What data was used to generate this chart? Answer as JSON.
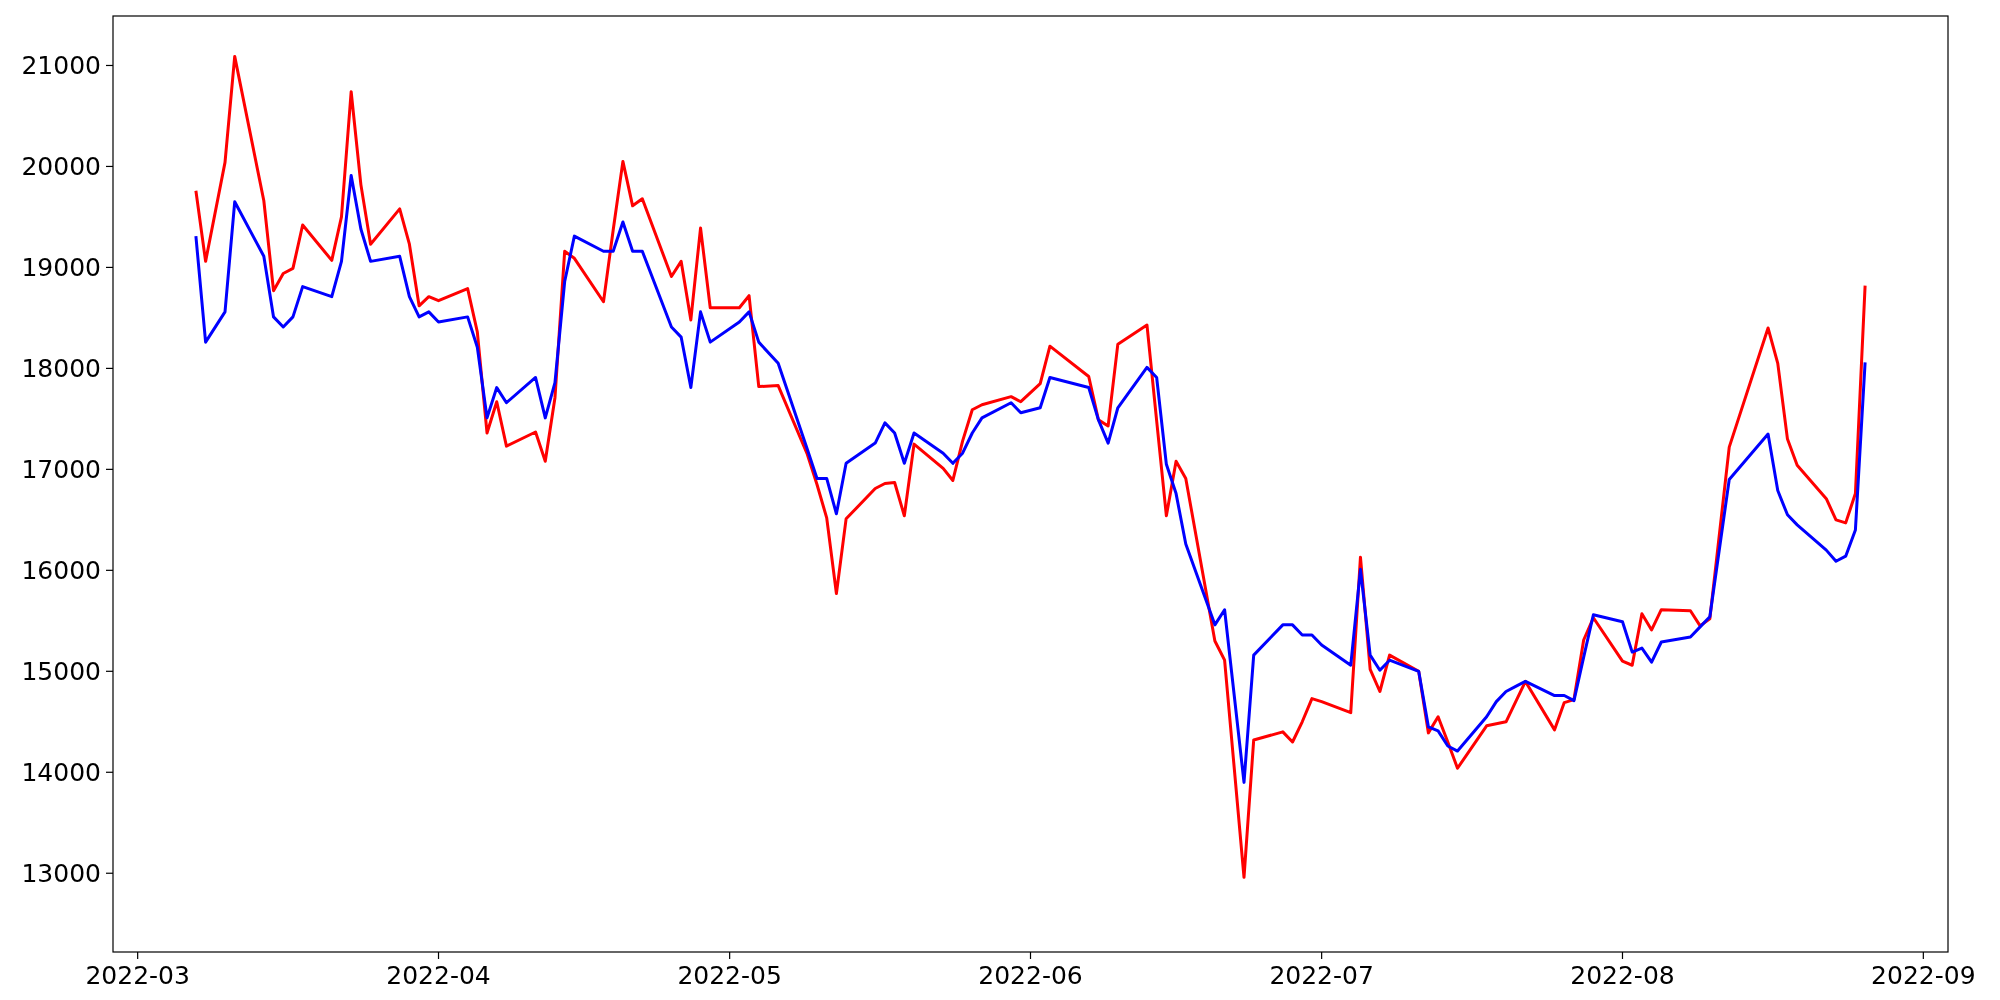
{
  "chart_data": {
    "type": "line",
    "grid": false,
    "line_style": "solid",
    "xlim": [
      "2022-02-26T11:00",
      "2022-09-03T13:00"
    ],
    "xticks": [
      "2022-03",
      "2022-04",
      "2022-05",
      "2022-06",
      "2022-07",
      "2022-08",
      "2022-09"
    ],
    "ylim": [
      12220,
      21490
    ],
    "yticks": [
      13000,
      14000,
      15000,
      16000,
      17000,
      18000,
      19000,
      20000,
      21000
    ],
    "x": [
      "2022-03-07",
      "2022-03-08",
      "2022-03-10",
      "2022-03-11",
      "2022-03-14",
      "2022-03-15",
      "2022-03-16",
      "2022-03-17",
      "2022-03-18",
      "2022-03-21",
      "2022-03-22",
      "2022-03-23",
      "2022-03-24",
      "2022-03-25",
      "2022-03-28",
      "2022-03-29",
      "2022-03-30",
      "2022-03-31",
      "2022-04-01",
      "2022-04-04",
      "2022-04-05",
      "2022-04-06",
      "2022-04-07",
      "2022-04-08",
      "2022-04-11",
      "2022-04-12",
      "2022-04-13",
      "2022-04-14",
      "2022-04-15",
      "2022-04-18",
      "2022-04-19",
      "2022-04-20",
      "2022-04-21",
      "2022-04-22",
      "2022-04-25",
      "2022-04-26",
      "2022-04-27",
      "2022-04-28",
      "2022-04-29",
      "2022-05-02",
      "2022-05-03",
      "2022-05-04",
      "2022-05-06",
      "2022-05-09",
      "2022-05-10",
      "2022-05-11",
      "2022-05-12",
      "2022-05-13",
      "2022-05-16",
      "2022-05-17",
      "2022-05-18",
      "2022-05-19",
      "2022-05-20",
      "2022-05-23",
      "2022-05-24",
      "2022-05-25",
      "2022-05-26",
      "2022-05-27",
      "2022-05-30",
      "2022-05-31",
      "2022-06-02",
      "2022-06-03",
      "2022-06-07",
      "2022-06-08",
      "2022-06-09",
      "2022-06-10",
      "2022-06-13",
      "2022-06-14",
      "2022-06-15",
      "2022-06-16",
      "2022-06-17",
      "2022-06-20",
      "2022-06-21",
      "2022-06-23",
      "2022-06-24",
      "2022-06-27",
      "2022-06-28",
      "2022-06-29",
      "2022-06-30",
      "2022-07-01",
      "2022-07-04",
      "2022-07-05",
      "2022-07-06",
      "2022-07-07",
      "2022-07-08",
      "2022-07-11",
      "2022-07-12",
      "2022-07-13",
      "2022-07-14",
      "2022-07-15",
      "2022-07-18",
      "2022-07-19",
      "2022-07-20",
      "2022-07-21",
      "2022-07-22",
      "2022-07-25",
      "2022-07-26",
      "2022-07-27",
      "2022-07-28",
      "2022-07-29",
      "2022-08-01",
      "2022-08-02",
      "2022-08-03",
      "2022-08-04",
      "2022-08-05",
      "2022-08-08",
      "2022-08-09",
      "2022-08-10",
      "2022-08-12",
      "2022-08-16",
      "2022-08-17",
      "2022-08-18",
      "2022-08-19",
      "2022-08-22",
      "2022-08-23",
      "2022-08-24",
      "2022-08-25",
      "2022-08-26"
    ],
    "series": [
      {
        "color": "#ff0000",
        "values": [
          19760,
          19060,
          20040,
          21090,
          19660,
          18770,
          18940,
          18990,
          19420,
          19070,
          19500,
          20740,
          19820,
          19230,
          19580,
          19230,
          18620,
          18710,
          18670,
          18790,
          18360,
          17360,
          17670,
          17230,
          17370,
          17080,
          17710,
          19160,
          19090,
          18660,
          19370,
          20050,
          19610,
          19680,
          18910,
          19060,
          18480,
          19390,
          18600,
          18600,
          18720,
          17820,
          17830,
          17150,
          16850,
          16520,
          15770,
          16510,
          16810,
          16860,
          16870,
          16540,
          17250,
          17010,
          16890,
          17280,
          17590,
          17640,
          17720,
          17670,
          17850,
          18220,
          17920,
          17490,
          17430,
          18240,
          18430,
          17480,
          16540,
          17080,
          16910,
          15300,
          15110,
          12960,
          14320,
          14400,
          14300,
          14500,
          14730,
          14700,
          14590,
          16130,
          15020,
          14800,
          15160,
          15000,
          14390,
          14550,
          14300,
          14040,
          14460,
          14480,
          14500,
          14700,
          14900,
          14420,
          14690,
          14720,
          15310,
          15530,
          15100,
          15060,
          15570,
          15410,
          15610,
          15600,
          15450,
          15520,
          17220,
          18400,
          18050,
          17300,
          17040,
          16710,
          16500,
          16470,
          16760,
          18820
        ]
      },
      {
        "color": "#0000ff",
        "values": [
          19310,
          18260,
          18560,
          19650,
          19110,
          18510,
          18410,
          18510,
          18810,
          18710,
          19060,
          19910,
          19380,
          19060,
          19110,
          18710,
          18510,
          18560,
          18460,
          18510,
          18210,
          17510,
          17810,
          17660,
          17910,
          17510,
          17860,
          18860,
          19310,
          19160,
          19160,
          19450,
          19160,
          19160,
          18410,
          18310,
          17810,
          18560,
          18260,
          18460,
          18560,
          18260,
          18050,
          17200,
          16910,
          16910,
          16560,
          17060,
          17260,
          17460,
          17360,
          17060,
          17360,
          17160,
          17060,
          17160,
          17360,
          17510,
          17660,
          17560,
          17610,
          17910,
          17810,
          17490,
          17260,
          17610,
          18010,
          17910,
          17050,
          16760,
          16260,
          15460,
          15610,
          13900,
          15160,
          15460,
          15460,
          15360,
          15360,
          15260,
          15060,
          16010,
          15160,
          15010,
          15110,
          15000,
          14450,
          14410,
          14260,
          14210,
          14550,
          14700,
          14800,
          14850,
          14900,
          14760,
          14760,
          14710,
          15140,
          15560,
          15490,
          15190,
          15230,
          15090,
          15290,
          15340,
          15440,
          15540,
          16900,
          17350,
          16790,
          16550,
          16450,
          16200,
          16090,
          16140,
          16400,
          18060
        ]
      }
    ]
  }
}
